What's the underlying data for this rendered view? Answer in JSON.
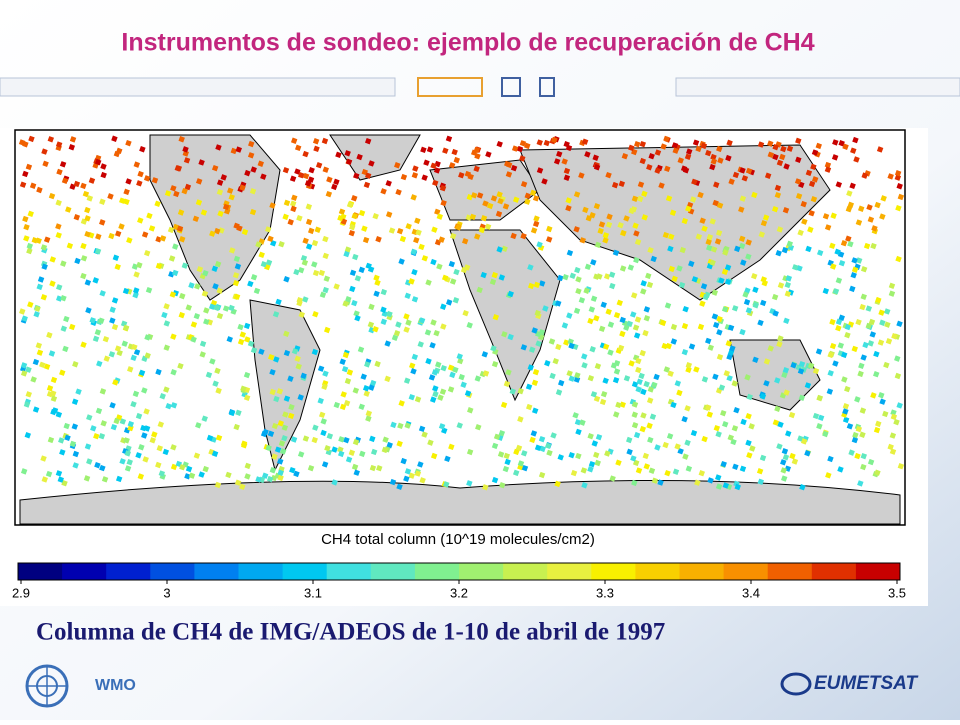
{
  "header": {
    "title": "Instrumentos de sondeo: ejemplo de recuperación de CH4"
  },
  "figure": {
    "colorbar": {
      "label": "CH4 total column (10^19 molecules/cm2)",
      "ticks": [
        2.9,
        3,
        3.1,
        3.2,
        3.3,
        3.4,
        3.5
      ],
      "colors": [
        "#000080",
        "#0000b0",
        "#0020d0",
        "#0050e0",
        "#0080f0",
        "#00a8f0",
        "#00c8f0",
        "#40e0e0",
        "#60e8c0",
        "#80f090",
        "#a0f070",
        "#c8f050",
        "#e8f040",
        "#f8f000",
        "#f8d000",
        "#f8b000",
        "#f89000",
        "#f06000",
        "#e03000",
        "#c80000"
      ]
    }
  },
  "caption": "Columna de CH4 de IMG/ADEOS de 1-10 de abril de 1997",
  "footer": {
    "left": "WMO",
    "right": "EUMETSAT"
  }
}
